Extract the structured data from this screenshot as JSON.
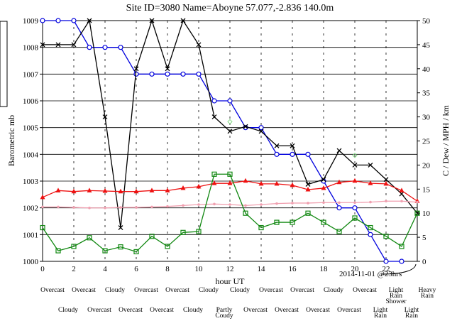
{
  "chart_data": {
    "type": "line",
    "title": "Site ID=3080 Name=Aboyne 57.077,-2.836 140.0m",
    "x_label": "hour UT",
    "y_label": "Barometric mb",
    "y2_label": "C / Dew / MPH / km",
    "annotation": "2014-11-01 @23hrs",
    "x": [
      0,
      1,
      2,
      3,
      4,
      5,
      6,
      7,
      8,
      9,
      10,
      11,
      12,
      13,
      14,
      15,
      16,
      17,
      18,
      19,
      20,
      21,
      22,
      23,
      24
    ],
    "xlim": [
      0,
      24
    ],
    "xticks": [
      0,
      2,
      4,
      6,
      8,
      10,
      12,
      14,
      16,
      18,
      20,
      22
    ],
    "ylim": [
      1000,
      1009
    ],
    "yticks": [
      1000,
      1001,
      1002,
      1003,
      1004,
      1005,
      1006,
      1007,
      1008,
      1009
    ],
    "y2lim": [
      0,
      50
    ],
    "y2ticks": [
      0,
      5,
      10,
      15,
      20,
      25,
      30,
      35,
      40,
      45,
      50
    ],
    "grid": true,
    "series": [
      {
        "marker": "circle",
        "color": "#0000dd",
        "axis": "y",
        "values": [
          1009,
          1009,
          1009,
          1008,
          1008,
          1008,
          1007,
          1007,
          1007,
          1007,
          1007,
          1006,
          1006,
          1005,
          1005,
          1004,
          1004,
          1004,
          1003,
          1002,
          1002,
          1001,
          1000,
          1000,
          null
        ]
      },
      {
        "marker": "cross",
        "color": "#000000",
        "axis": "y2",
        "values": [
          45,
          45,
          45,
          50,
          30,
          7,
          40,
          50,
          40,
          50,
          45,
          30,
          27,
          28,
          27,
          24,
          24,
          16,
          17,
          23,
          20,
          20,
          17,
          14,
          10
        ]
      },
      {
        "marker": "triangle",
        "color": "#ee1111",
        "axis": "y2",
        "values": [
          13.3,
          14.7,
          14.5,
          14.7,
          14.6,
          14.5,
          14.5,
          14.7,
          14.7,
          15.2,
          15.5,
          16.2,
          16.2,
          16.7,
          16.1,
          16.1,
          15.8,
          14.9,
          15.2,
          16.4,
          16.7,
          16.2,
          16.1,
          14.7,
          12.5
        ]
      },
      {
        "marker": "dot",
        "color": "#f0a0b0",
        "axis": "y2",
        "values": [
          11.3,
          11.3,
          11.2,
          11.1,
          11.1,
          11.2,
          11.2,
          11.3,
          11.4,
          11.6,
          11.8,
          11.9,
          11.8,
          11.6,
          11.8,
          12,
          12.1,
          12.1,
          12.2,
          12.2,
          12.2,
          12.3,
          12.5,
          12.5,
          12.3
        ]
      },
      {
        "marker": "square",
        "color": "#118811",
        "axis": "y2",
        "values": [
          7,
          2.2,
          3.1,
          4.9,
          2.2,
          3,
          2,
          5.2,
          3.1,
          6,
          6.2,
          18.1,
          18.1,
          10,
          7,
          8.1,
          8.1,
          10,
          8.1,
          6.2,
          9,
          7,
          5.2,
          3.1,
          10
        ]
      },
      {
        "marker": "diamond",
        "color": "#88dd88",
        "axis": "y2",
        "values": [
          null,
          null,
          null,
          null,
          null,
          null,
          null,
          null,
          null,
          null,
          null,
          null,
          29,
          null,
          null,
          null,
          null,
          null,
          null,
          null,
          22,
          null,
          null,
          null,
          null
        ]
      }
    ],
    "conditions": [
      [
        "Overcast"
      ],
      [
        "Cloudy"
      ],
      [
        "Overcast"
      ],
      [
        "Overcast"
      ],
      [
        "Cloudy"
      ],
      [
        "Overcast"
      ],
      [
        "Overcast"
      ],
      [
        "Overcast"
      ],
      [
        "Overcast"
      ],
      [
        "Cloudy"
      ],
      [
        "Cloudy"
      ],
      [
        "Partly",
        "Coudy"
      ],
      [
        "Cloudy"
      ],
      [
        "Overcast"
      ],
      [
        "Overcast"
      ],
      [
        "Overcast"
      ],
      [
        "Overcast"
      ],
      [
        "Overcast"
      ],
      [
        "Cloudy"
      ],
      [
        "Overcast"
      ],
      [
        "Overcast"
      ],
      [
        "Light",
        "Rain"
      ],
      [
        "Light",
        "Rain",
        "Shower"
      ],
      [
        "Light",
        "Rain"
      ],
      [
        "Heavy",
        "Rain"
      ]
    ]
  }
}
